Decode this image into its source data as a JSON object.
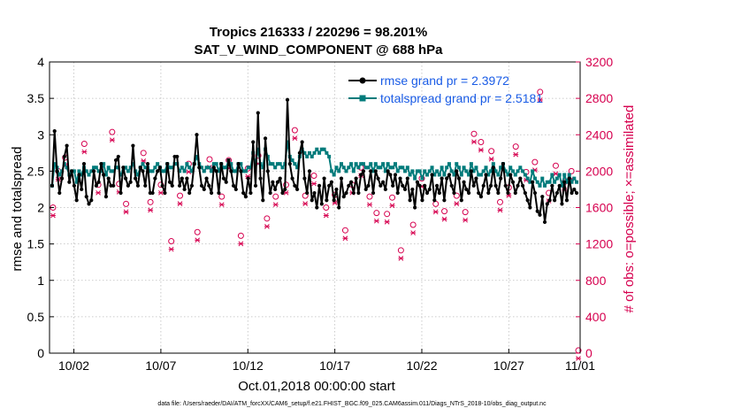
{
  "colors": {
    "rmse": "#000000",
    "spread": "#007b7b",
    "obs": "#d6004f",
    "legend_text": "#1a5ce6"
  },
  "chart_data": {
    "type": "line",
    "title": "Tropics 216333 / 220296 = 98.201%",
    "subtitle": "SAT_V_WIND_COMPONENT @ 688 hPa",
    "ylabel": "rmse and totalspread",
    "y2label": "# of obs: o=possible; ×=assimilated",
    "xlabel": "Oct.01,2018 00:00:00 start",
    "footer": "data file: /Users/raeder/DAI/ATM_forcXX/CAM6_setup/f.e21.FHIST_BGC.f09_025.CAM6assim.011/Diags_NTrS_2018-10/obs_diag_output.nc",
    "xlim": [
      0.6,
      31.1
    ],
    "ylim": [
      0,
      4
    ],
    "y2lim": [
      0,
      3200
    ],
    "yticks": [
      "0",
      "0.5",
      "1",
      "1.5",
      "2",
      "2.5",
      "3",
      "3.5",
      "4"
    ],
    "y2ticks": [
      "0",
      "400",
      "800",
      "1200",
      "1600",
      "2000",
      "2400",
      "2800",
      "3200"
    ],
    "xticks": [
      {
        "v": 2,
        "label": "10/02"
      },
      {
        "v": 7,
        "label": "10/07"
      },
      {
        "v": 12,
        "label": "10/12"
      },
      {
        "v": 17,
        "label": "10/17"
      },
      {
        "v": 22,
        "label": "10/22"
      },
      {
        "v": 27,
        "label": "10/27"
      },
      {
        "v": 32,
        "label": "11/01"
      }
    ],
    "legend": [
      {
        "name": "rmse",
        "label": "rmse grand pr = 2.3972"
      },
      {
        "name": "totalspread",
        "label": "totalspread grand pr = 2.5181"
      }
    ],
    "rmse": [
      2.3,
      3.05,
      2.5,
      2.2,
      2.4,
      2.7,
      2.85,
      2.35,
      2.5,
      2.3,
      2.1,
      2.45,
      2.25,
      2.6,
      2.15,
      2.05,
      2.1,
      2.5,
      2.3,
      2.35,
      2.6,
      2.45,
      2.15,
      2.4,
      2.3,
      2.3,
      2.65,
      2.7,
      2.2,
      2.55,
      2.4,
      2.3,
      2.35,
      2.85,
      2.4,
      2.3,
      2.55,
      2.5,
      2.3,
      2.6,
      2.2,
      2.2,
      2.4,
      2.5,
      2.55,
      2.3,
      2.2,
      2.6,
      2.35,
      2.3,
      2.7,
      2.7,
      2.3,
      2.4,
      2.25,
      2.4,
      2.2,
      2.3,
      2.6,
      3.0,
      2.55,
      2.3,
      2.25,
      2.4,
      2.3,
      2.2,
      2.55,
      2.5,
      2.2,
      2.6,
      2.4,
      2.35,
      2.65,
      2.5,
      2.3,
      2.25,
      2.6,
      2.5,
      2.2,
      2.15,
      2.4,
      2.2,
      2.9,
      2.3,
      3.3,
      2.4,
      2.1,
      2.95,
      2.5,
      2.2,
      2.35,
      2.25,
      2.35,
      2.4,
      2.2,
      2.25,
      3.48,
      2.6,
      2.4,
      2.3,
      2.25,
      2.75,
      2.9,
      2.4,
      2.2,
      2.5,
      2.1,
      2.2,
      2.0,
      2.3,
      2.05,
      2.4,
      2.1,
      2.3,
      2.35,
      2.1,
      2.25,
      2.0,
      2.4,
      2.15,
      2.2,
      2.3,
      2.35,
      2.2,
      2.4,
      2.2,
      2.45,
      2.5,
      2.25,
      2.3,
      2.5,
      2.2,
      2.5,
      2.4,
      2.3,
      2.35,
      2.25,
      2.5,
      2.45,
      2.3,
      2.45,
      2.2,
      2.4,
      2.3,
      2.25,
      2.4,
      2.1,
      2.25,
      2.0,
      2.35,
      2.3,
      2.1,
      2.3,
      2.2,
      2.25,
      2.45,
      2.1,
      2.3,
      2.2,
      2.4,
      2.1,
      2.4,
      2.45,
      2.3,
      2.2,
      2.5,
      2.4,
      2.1,
      2.35,
      2.25,
      2.2,
      2.5,
      2.3,
      2.4,
      2.2,
      2.15,
      2.3,
      2.45,
      2.2,
      2.3,
      2.55,
      2.3,
      2.2,
      2.4,
      2.6,
      2.3,
      2.2,
      2.45,
      2.35,
      2.2,
      2.3,
      2.4,
      2.3,
      2.2,
      2.1,
      2.0,
      2.35,
      2.2,
      1.95,
      1.9,
      2.15,
      1.8,
      2.05,
      2.1,
      2.3,
      2.1,
      2.2,
      2.3,
      2.05,
      2.35,
      2.1,
      2.4,
      2.2,
      2.25,
      2.2
    ],
    "spread": [
      2.3,
      2.6,
      2.55,
      2.45,
      2.5,
      2.6,
      2.55,
      2.45,
      2.5,
      2.5,
      2.35,
      2.5,
      2.45,
      2.55,
      2.5,
      2.45,
      2.5,
      2.55,
      2.55,
      2.5,
      2.5,
      2.6,
      2.45,
      2.55,
      2.5,
      2.5,
      2.55,
      2.55,
      2.45,
      2.5,
      2.55,
      2.5,
      2.55,
      2.6,
      2.5,
      2.45,
      2.55,
      2.6,
      2.55,
      2.55,
      2.5,
      2.5,
      2.55,
      2.6,
      2.55,
      2.5,
      2.5,
      2.6,
      2.55,
      2.55,
      2.6,
      2.6,
      2.5,
      2.55,
      2.5,
      2.6,
      2.55,
      2.5,
      2.6,
      2.7,
      2.6,
      2.55,
      2.5,
      2.55,
      2.55,
      2.5,
      2.6,
      2.6,
      2.5,
      2.6,
      2.55,
      2.55,
      2.65,
      2.6,
      2.5,
      2.5,
      2.6,
      2.6,
      2.5,
      2.5,
      2.55,
      2.55,
      2.75,
      2.6,
      2.8,
      2.6,
      2.55,
      2.8,
      2.7,
      2.6,
      2.6,
      2.55,
      2.6,
      2.6,
      2.55,
      2.6,
      2.9,
      2.7,
      2.65,
      2.6,
      2.55,
      2.7,
      2.8,
      2.75,
      2.7,
      2.75,
      2.7,
      2.75,
      2.8,
      2.75,
      2.8,
      2.8,
      2.75,
      2.7,
      2.5,
      2.45,
      2.55,
      2.5,
      2.6,
      2.55,
      2.5,
      2.55,
      2.6,
      2.5,
      2.6,
      2.55,
      2.6,
      2.6,
      2.55,
      2.55,
      2.6,
      2.5,
      2.6,
      2.55,
      2.55,
      2.6,
      2.5,
      2.6,
      2.55,
      2.55,
      2.6,
      2.5,
      2.55,
      2.55,
      2.5,
      2.55,
      2.45,
      2.5,
      2.4,
      2.5,
      2.5,
      2.4,
      2.5,
      2.45,
      2.5,
      2.55,
      2.45,
      2.5,
      2.45,
      2.55,
      2.45,
      2.55,
      2.6,
      2.5,
      2.45,
      2.6,
      2.55,
      2.45,
      2.55,
      2.5,
      2.45,
      2.6,
      2.5,
      2.55,
      2.45,
      2.45,
      2.5,
      2.55,
      2.45,
      2.5,
      2.6,
      2.5,
      2.45,
      2.55,
      2.6,
      2.5,
      2.45,
      2.55,
      2.5,
      2.45,
      2.5,
      2.55,
      2.5,
      2.45,
      2.4,
      2.35,
      2.5,
      2.4,
      2.35,
      2.3,
      2.4,
      2.3,
      2.35,
      2.35,
      2.45,
      2.35,
      2.4,
      2.45,
      2.3,
      2.45,
      2.35,
      2.45,
      2.35,
      2.4,
      2.35
    ],
    "obs_possible": [
      {
        "x": 0.8,
        "y": 1600
      },
      {
        "x": 1.1,
        "y": 2000
      },
      {
        "x": 1.5,
        "y": 2150
      },
      {
        "x": 2.6,
        "y": 2300
      },
      {
        "x": 3.4,
        "y": 1850
      },
      {
        "x": 4.2,
        "y": 2430
      },
      {
        "x": 4.6,
        "y": 1860
      },
      {
        "x": 5.0,
        "y": 1640
      },
      {
        "x": 6.0,
        "y": 2200
      },
      {
        "x": 6.4,
        "y": 1660
      },
      {
        "x": 7.0,
        "y": 1850
      },
      {
        "x": 7.6,
        "y": 1230
      },
      {
        "x": 8.1,
        "y": 1730
      },
      {
        "x": 8.6,
        "y": 2080
      },
      {
        "x": 9.1,
        "y": 1330
      },
      {
        "x": 9.8,
        "y": 2130
      },
      {
        "x": 10.5,
        "y": 1720
      },
      {
        "x": 10.9,
        "y": 2120
      },
      {
        "x": 11.6,
        "y": 1290
      },
      {
        "x": 12.0,
        "y": 2030
      },
      {
        "x": 12.6,
        "y": 2170
      },
      {
        "x": 13.1,
        "y": 1480
      },
      {
        "x": 13.6,
        "y": 1720
      },
      {
        "x": 14.2,
        "y": 1850
      },
      {
        "x": 14.7,
        "y": 2450
      },
      {
        "x": 15.3,
        "y": 1730
      },
      {
        "x": 15.8,
        "y": 1950
      },
      {
        "x": 16.5,
        "y": 1600
      },
      {
        "x": 17.0,
        "y": 1740
      },
      {
        "x": 17.6,
        "y": 1350
      },
      {
        "x": 18.0,
        "y": 1850
      },
      {
        "x": 18.5,
        "y": 2040
      },
      {
        "x": 19.0,
        "y": 1720
      },
      {
        "x": 19.4,
        "y": 1540
      },
      {
        "x": 20.0,
        "y": 1530
      },
      {
        "x": 20.3,
        "y": 1710
      },
      {
        "x": 20.8,
        "y": 1130
      },
      {
        "x": 21.5,
        "y": 1410
      },
      {
        "x": 22.0,
        "y": 1920
      },
      {
        "x": 22.8,
        "y": 1640
      },
      {
        "x": 23.3,
        "y": 1560
      },
      {
        "x": 24.0,
        "y": 1730
      },
      {
        "x": 24.5,
        "y": 1550
      },
      {
        "x": 25.0,
        "y": 2410
      },
      {
        "x": 25.4,
        "y": 2320
      },
      {
        "x": 26.0,
        "y": 2220
      },
      {
        "x": 26.5,
        "y": 1660
      },
      {
        "x": 27.0,
        "y": 1820
      },
      {
        "x": 27.4,
        "y": 2270
      },
      {
        "x": 28.0,
        "y": 1990
      },
      {
        "x": 28.5,
        "y": 2100
      },
      {
        "x": 28.8,
        "y": 2870
      },
      {
        "x": 29.3,
        "y": 1760
      },
      {
        "x": 29.7,
        "y": 2060
      },
      {
        "x": 30.2,
        "y": 1880
      },
      {
        "x": 30.6,
        "y": 2000
      },
      {
        "x": 31.0,
        "y": 30
      }
    ],
    "obs_assimilated": [
      {
        "x": 0.8,
        "y": 1590
      },
      {
        "x": 1.1,
        "y": 1990
      },
      {
        "x": 1.5,
        "y": 2140
      },
      {
        "x": 2.6,
        "y": 2290
      },
      {
        "x": 3.4,
        "y": 1840
      },
      {
        "x": 4.2,
        "y": 2420
      },
      {
        "x": 4.6,
        "y": 1850
      },
      {
        "x": 5.0,
        "y": 1630
      },
      {
        "x": 6.0,
        "y": 2190
      },
      {
        "x": 6.4,
        "y": 1650
      },
      {
        "x": 7.0,
        "y": 1840
      },
      {
        "x": 7.6,
        "y": 1220
      },
      {
        "x": 8.1,
        "y": 1720
      },
      {
        "x": 8.6,
        "y": 2070
      },
      {
        "x": 9.1,
        "y": 1320
      },
      {
        "x": 9.8,
        "y": 2120
      },
      {
        "x": 10.5,
        "y": 1710
      },
      {
        "x": 10.9,
        "y": 2110
      },
      {
        "x": 11.6,
        "y": 1280
      },
      {
        "x": 12.0,
        "y": 2020
      },
      {
        "x": 12.6,
        "y": 2160
      },
      {
        "x": 13.1,
        "y": 1470
      },
      {
        "x": 13.6,
        "y": 1710
      },
      {
        "x": 14.2,
        "y": 1840
      },
      {
        "x": 14.7,
        "y": 2440
      },
      {
        "x": 15.3,
        "y": 1720
      },
      {
        "x": 15.8,
        "y": 1940
      },
      {
        "x": 16.5,
        "y": 1590
      },
      {
        "x": 17.0,
        "y": 1730
      },
      {
        "x": 17.6,
        "y": 1340
      },
      {
        "x": 18.0,
        "y": 1840
      },
      {
        "x": 18.5,
        "y": 2030
      },
      {
        "x": 19.0,
        "y": 1710
      },
      {
        "x": 19.4,
        "y": 1530
      },
      {
        "x": 20.0,
        "y": 1520
      },
      {
        "x": 20.3,
        "y": 1700
      },
      {
        "x": 20.8,
        "y": 1120
      },
      {
        "x": 21.5,
        "y": 1400
      },
      {
        "x": 22.0,
        "y": 1910
      },
      {
        "x": 22.8,
        "y": 1630
      },
      {
        "x": 23.3,
        "y": 1550
      },
      {
        "x": 24.0,
        "y": 1720
      },
      {
        "x": 24.5,
        "y": 1540
      },
      {
        "x": 25.0,
        "y": 2400
      },
      {
        "x": 25.4,
        "y": 2310
      },
      {
        "x": 26.0,
        "y": 2210
      },
      {
        "x": 26.5,
        "y": 1650
      },
      {
        "x": 27.0,
        "y": 1810
      },
      {
        "x": 27.4,
        "y": 2260
      },
      {
        "x": 28.0,
        "y": 1980
      },
      {
        "x": 28.5,
        "y": 2090
      },
      {
        "x": 28.8,
        "y": 2860
      },
      {
        "x": 29.3,
        "y": 1750
      },
      {
        "x": 29.7,
        "y": 2050
      },
      {
        "x": 30.2,
        "y": 1870
      },
      {
        "x": 30.6,
        "y": 1990
      },
      {
        "x": 31.0,
        "y": 20
      }
    ]
  }
}
